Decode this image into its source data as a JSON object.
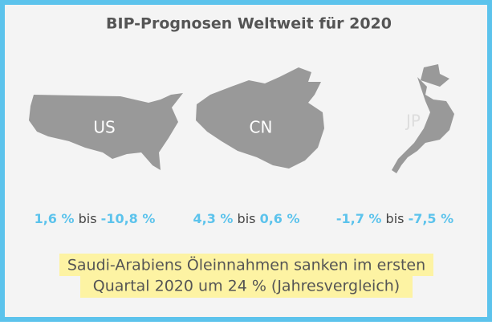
{
  "header": {
    "title": "BIP-Prognosen Weltweit für 2020"
  },
  "countries": [
    {
      "code": "US",
      "low": "1,6 %",
      "connector": "bis",
      "high": "-10,8 %"
    },
    {
      "code": "CN",
      "low": "4,3 %",
      "connector": "bis",
      "high": "0,6 %"
    },
    {
      "code": "JP",
      "low": "-1,7 %",
      "connector": "bis",
      "high": "-7,5 %"
    }
  ],
  "footer": {
    "lines": [
      "Saudi-Arabiens Öleinnahmen sanken im ersten",
      "Quartal 2020 um 24 % (Jahresvergleich)"
    ]
  }
}
